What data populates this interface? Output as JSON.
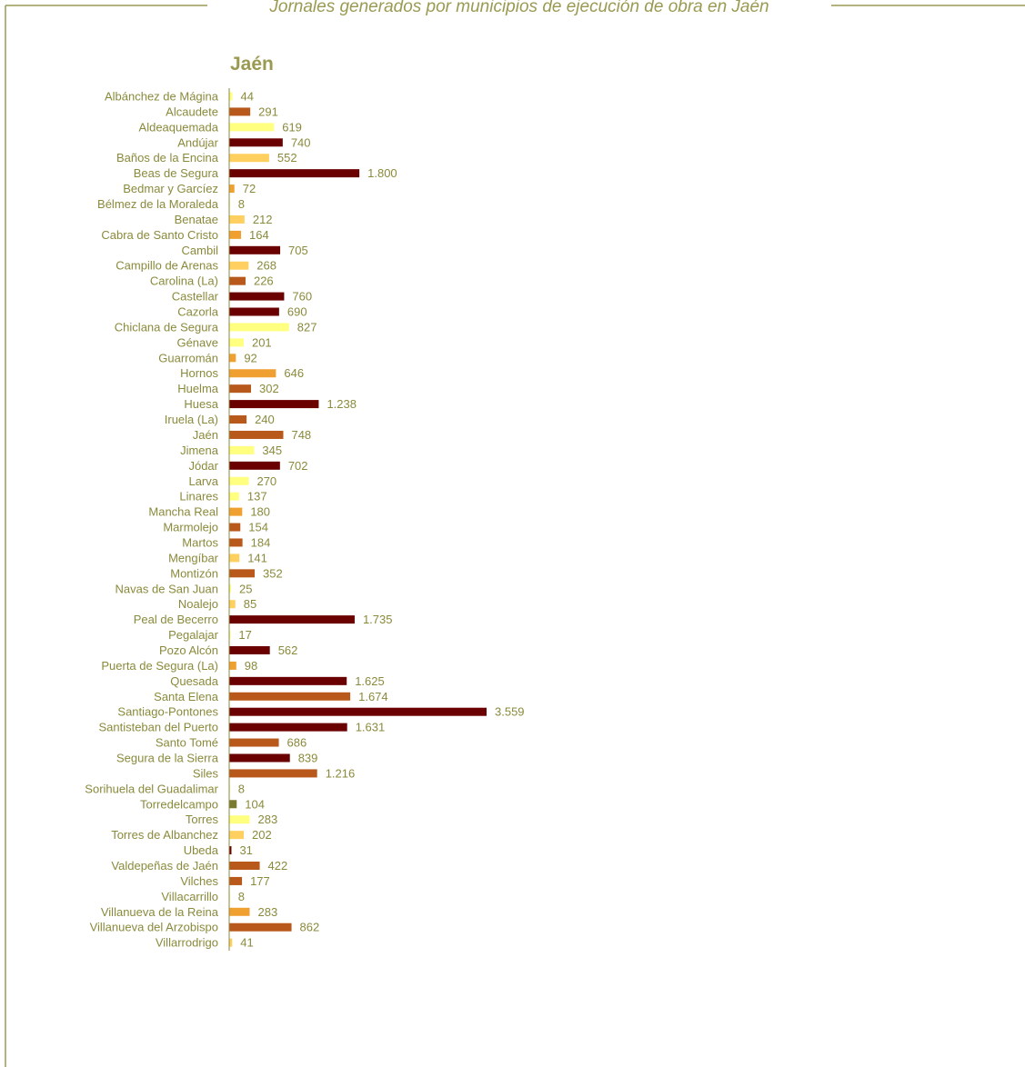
{
  "header": {
    "text": "Jornales generados por municipios de ejecución de obra en Jaén"
  },
  "colors": {
    "frame": "#9a9a52",
    "text": "#8a8a3c",
    "title": "#9a9a52",
    "axis": "#8a8a3c"
  },
  "chart_data": {
    "type": "bar",
    "orientation": "horizontal",
    "title": "Jaén",
    "xlabel": "",
    "ylabel": "",
    "xlim": [
      0,
      3559
    ],
    "grid": false,
    "legend": "none",
    "categories": [
      "Albánchez de Mágina",
      "Alcaudete",
      "Aldeaquemada",
      "Andújar",
      "Baños de la Encina",
      "Beas de Segura",
      "Bedmar y Garcíez",
      "Bélmez de la Moraleda",
      "Benatae",
      "Cabra de Santo Cristo",
      "Cambil",
      "Campillo de Arenas",
      "Carolina (La)",
      "Castellar",
      "Cazorla",
      "Chiclana de Segura",
      "Génave",
      "Guarromán",
      "Hornos",
      "Huelma",
      "Huesa",
      "Iruela (La)",
      "Jaén",
      "Jimena",
      "Jódar",
      "Larva",
      "Linares",
      "Mancha Real",
      "Marmolejo",
      "Martos",
      "Mengíbar",
      "Montizón",
      "Navas de San Juan",
      "Noalejo",
      "Peal de Becerro",
      "Pegalajar",
      "Pozo Alcón",
      "Puerta de Segura (La)",
      "Quesada",
      "Santa Elena",
      "Santiago-Pontones",
      "Santisteban del Puerto",
      "Santo Tomé",
      "Segura de la Sierra",
      "Siles",
      "Sorihuela del Guadalimar",
      "Torredelcampo",
      "Torres",
      "Torres de Albanchez",
      "Ubeda",
      "Valdepeñas de Jaén",
      "Vilches",
      "Villacarrillo",
      "Villanueva de la Reina",
      "Villanueva del Arzobispo",
      "Villarrodrigo"
    ],
    "values": [
      44,
      291,
      619,
      740,
      552,
      1800,
      72,
      8,
      212,
      164,
      705,
      268,
      226,
      760,
      690,
      827,
      201,
      92,
      646,
      302,
      1238,
      240,
      748,
      345,
      702,
      270,
      137,
      180,
      154,
      184,
      141,
      352,
      25,
      85,
      1735,
      17,
      562,
      98,
      1625,
      1674,
      3559,
      1631,
      686,
      839,
      1216,
      8,
      104,
      283,
      202,
      31,
      422,
      177,
      8,
      283,
      862,
      41
    ],
    "value_labels": [
      "44",
      "291",
      "619",
      "740",
      "552",
      "1.800",
      "72",
      "8",
      "212",
      "164",
      "705",
      "268",
      "226",
      "760",
      "690",
      "827",
      "201",
      "92",
      "646",
      "302",
      "1.238",
      "240",
      "748",
      "345",
      "702",
      "270",
      "137",
      "180",
      "154",
      "184",
      "141",
      "352",
      "25",
      "85",
      "1.735",
      "17",
      "562",
      "98",
      "1.625",
      "1.674",
      "3.559",
      "1.631",
      "686",
      "839",
      "1.216",
      "8",
      "104",
      "283",
      "202",
      "31",
      "422",
      "177",
      "8",
      "283",
      "862",
      "41"
    ],
    "bar_colors": [
      "#ffff80",
      "#b8581a",
      "#ffff80",
      "#6b0000",
      "#ffd060",
      "#6b0000",
      "#f0a030",
      "#ffff80",
      "#ffd060",
      "#f0a030",
      "#6b0000",
      "#ffd060",
      "#b8581a",
      "#6b0000",
      "#6b0000",
      "#ffff80",
      "#ffff80",
      "#f0a030",
      "#f0a030",
      "#b8581a",
      "#6b0000",
      "#b8581a",
      "#b8581a",
      "#ffff80",
      "#6b0000",
      "#ffff80",
      "#ffff80",
      "#f0a030",
      "#b8581a",
      "#b8581a",
      "#ffd060",
      "#b8581a",
      "#ffff80",
      "#ffd060",
      "#6b0000",
      "#ffff80",
      "#6b0000",
      "#f0a030",
      "#6b0000",
      "#b8581a",
      "#6b0000",
      "#6b0000",
      "#b8581a",
      "#6b0000",
      "#b8581a",
      "#ffff80",
      "#7a7a30",
      "#ffff80",
      "#ffd060",
      "#6b0000",
      "#b8581a",
      "#b8581a",
      "#ffff80",
      "#f0a030",
      "#b8581a",
      "#ffd060"
    ]
  }
}
